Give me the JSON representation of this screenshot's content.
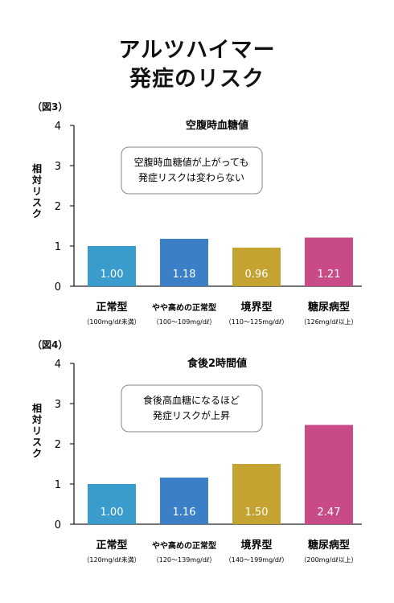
{
  "title_line1": "アルツハイマー",
  "title_line2": "発症のリスク",
  "chart_data": [
    {
      "type": "bar",
      "figure_label": "（図3）",
      "title": "空腹時血糖値",
      "ylabel": "相対リスク",
      "ylim": [
        0,
        4
      ],
      "yticks": [
        "0",
        "1",
        "2",
        "3",
        "4"
      ],
      "annotation": [
        "空腹時血糖値が上がっても",
        "発症リスクは変わらない"
      ],
      "categories": [
        "正常型",
        "やや高めの正常型",
        "境界型",
        "糖尿病型"
      ],
      "ranges": [
        "（100mg/dℓ未満）",
        "（100〜109mg/dℓ）",
        "（110〜125mg/dℓ）",
        "（126mg/dℓ以上）"
      ],
      "values": [
        1.0,
        1.18,
        0.96,
        1.21
      ],
      "value_labels": [
        "1.00",
        "1.18",
        "0.96",
        "1.21"
      ],
      "colors": [
        "#3a9ccc",
        "#3b7fc6",
        "#c5a331",
        "#c84b86"
      ]
    },
    {
      "type": "bar",
      "figure_label": "（図4）",
      "title": "食後2時間値",
      "ylabel": "相対リスク",
      "ylim": [
        0,
        4
      ],
      "yticks": [
        "0",
        "1",
        "2",
        "3",
        "4"
      ],
      "annotation": [
        "食後高血糖になるほど",
        "発症リスクが上昇"
      ],
      "categories": [
        "正常型",
        "やや高めの正常型",
        "境界型",
        "糖尿病型"
      ],
      "ranges": [
        "（120mg/dℓ未満）",
        "（120〜139mg/dℓ）",
        "（140〜199mg/dℓ）",
        "（200mg/dℓ以上）"
      ],
      "values": [
        1.0,
        1.16,
        1.5,
        2.47
      ],
      "value_labels": [
        "1.00",
        "1.16",
        "1.50",
        "2.47"
      ],
      "colors": [
        "#3a9ccc",
        "#3b7fc6",
        "#c5a331",
        "#c84b86"
      ]
    }
  ]
}
